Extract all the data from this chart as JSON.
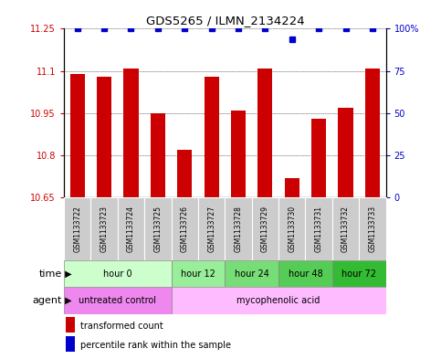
{
  "title": "GDS5265 / ILMN_2134224",
  "samples": [
    "GSM1133722",
    "GSM1133723",
    "GSM1133724",
    "GSM1133725",
    "GSM1133726",
    "GSM1133727",
    "GSM1133728",
    "GSM1133729",
    "GSM1133730",
    "GSM1133731",
    "GSM1133732",
    "GSM1133733"
  ],
  "bar_values": [
    11.09,
    11.08,
    11.11,
    10.95,
    10.82,
    11.08,
    10.96,
    11.11,
    10.72,
    10.93,
    10.97,
    11.11
  ],
  "percentile_values": [
    100,
    100,
    100,
    100,
    100,
    100,
    100,
    100,
    94,
    100,
    100,
    100
  ],
  "bar_color": "#cc0000",
  "percentile_color": "#0000cc",
  "ylim_left": [
    10.65,
    11.25
  ],
  "ylim_right": [
    0,
    100
  ],
  "yticks_left": [
    10.65,
    10.8,
    10.95,
    11.1,
    11.25
  ],
  "yticks_right": [
    0,
    25,
    50,
    75,
    100
  ],
  "ytick_labels_left": [
    "10.65",
    "10.8",
    "10.95",
    "11.1",
    "11.25"
  ],
  "ytick_labels_right": [
    "0",
    "25",
    "50",
    "75",
    "100%"
  ],
  "time_groups": [
    {
      "label": "hour 0",
      "start": 0,
      "end": 4,
      "color": "#ccffcc"
    },
    {
      "label": "hour 12",
      "start": 4,
      "end": 6,
      "color": "#99ee99"
    },
    {
      "label": "hour 24",
      "start": 6,
      "end": 8,
      "color": "#77dd77"
    },
    {
      "label": "hour 48",
      "start": 8,
      "end": 10,
      "color": "#55cc55"
    },
    {
      "label": "hour 72",
      "start": 10,
      "end": 12,
      "color": "#33bb33"
    }
  ],
  "agent_groups": [
    {
      "label": "untreated control",
      "start": 0,
      "end": 4,
      "color": "#ee88ee"
    },
    {
      "label": "mycophenolic acid",
      "start": 4,
      "end": 12,
      "color": "#ffbbff"
    }
  ],
  "legend_bar_label": "transformed count",
  "legend_pct_label": "percentile rank within the sample",
  "xlabel_time": "time",
  "xlabel_agent": "agent",
  "bg_color": "#ffffff",
  "sample_bg_color": "#cccccc",
  "border_color": "#888888"
}
